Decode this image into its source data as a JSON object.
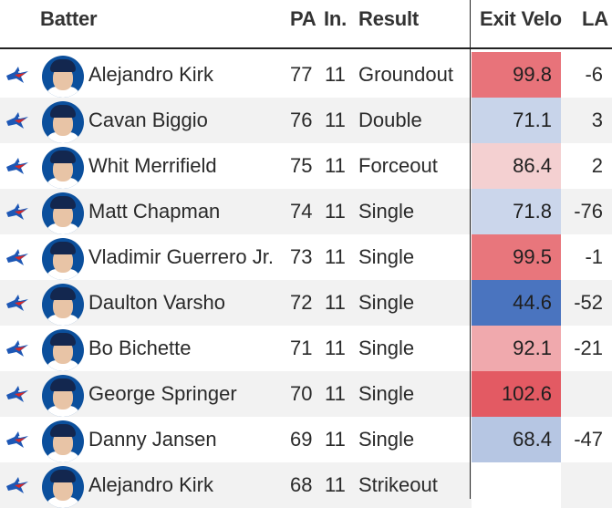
{
  "headers": {
    "batter": "Batter",
    "pa": "PA",
    "inning": "In.",
    "result": "Result",
    "exit_velo": "Exit Velo",
    "la": "LA"
  },
  "rows": [
    {
      "name": "Alejandro Kirk",
      "pa": "77",
      "inning": "11",
      "result": "Groundout",
      "exit_velo": "99.8",
      "la": "-6",
      "ev_color": "#e8737a"
    },
    {
      "name": "Cavan Biggio",
      "pa": "76",
      "inning": "11",
      "result": "Double",
      "exit_velo": "71.1",
      "la": "3",
      "ev_color": "#c8d4ea"
    },
    {
      "name": "Whit Merrifield",
      "pa": "75",
      "inning": "11",
      "result": "Forceout",
      "exit_velo": "86.4",
      "la": "2",
      "ev_color": "#f4d0d1"
    },
    {
      "name": "Matt Chapman",
      "pa": "74",
      "inning": "11",
      "result": "Single",
      "exit_velo": "71.8",
      "la": "-76",
      "ev_color": "#cbd6eb"
    },
    {
      "name": "Vladimir Guerrero Jr.",
      "pa": "73",
      "inning": "11",
      "result": "Single",
      "exit_velo": "99.5",
      "la": "-1",
      "ev_color": "#e8767c"
    },
    {
      "name": "Daulton Varsho",
      "pa": "72",
      "inning": "11",
      "result": "Single",
      "exit_velo": "44.6",
      "la": "-52",
      "ev_color": "#4a74bf"
    },
    {
      "name": "Bo Bichette",
      "pa": "71",
      "inning": "11",
      "result": "Single",
      "exit_velo": "92.1",
      "la": "-21",
      "ev_color": "#f0a9ad"
    },
    {
      "name": "George Springer",
      "pa": "70",
      "inning": "11",
      "result": "Single",
      "exit_velo": "102.6",
      "la": "",
      "ev_color": "#e35a63"
    },
    {
      "name": "Danny Jansen",
      "pa": "69",
      "inning": "11",
      "result": "Single",
      "exit_velo": "68.4",
      "la": "-47",
      "ev_color": "#b6c6e3"
    },
    {
      "name": "Alejandro Kirk",
      "pa": "68",
      "inning": "11",
      "result": "Strikeout",
      "exit_velo": "",
      "la": "",
      "ev_color": "#ffffff"
    }
  ]
}
